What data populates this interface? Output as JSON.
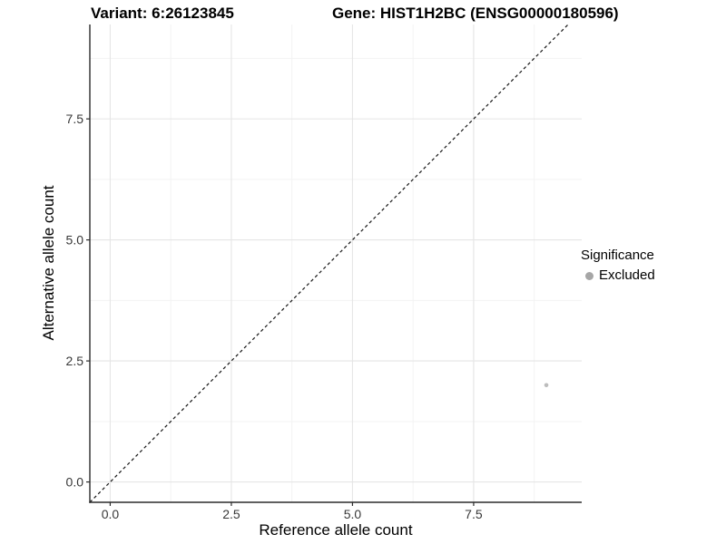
{
  "chart_data": {
    "type": "scatter",
    "titles": [
      "Variant: 6:26123845",
      "Gene: HIST1H2BC (ENSG00000180596)"
    ],
    "xlabel": "Reference allele count",
    "ylabel": "Alternative allele count",
    "x_ticks": [
      0,
      2.5,
      5,
      7.5
    ],
    "x_tick_labels": [
      "0.0",
      "2.5",
      "5.0",
      "7.5"
    ],
    "y_ticks": [
      0,
      2.5,
      5,
      7.5
    ],
    "y_tick_labels": [
      "0.0",
      "2.5",
      "5.0",
      "7.5"
    ],
    "xlim": [
      -0.42,
      9.73
    ],
    "ylim": [
      -0.42,
      9.45
    ],
    "grid": {
      "major": true,
      "minor": true
    },
    "points": [
      {
        "x": 9,
        "y": 2,
        "series": "Excluded",
        "color": "#bdbdbd"
      }
    ],
    "reference_line": {
      "type": "identity",
      "slope": 1,
      "intercept": 0,
      "style": "dashed",
      "color": "#141414"
    },
    "legend": {
      "title": "Significance",
      "position": "right",
      "items": [
        {
          "label": "Excluded",
          "color": "#a6a6a6"
        }
      ]
    },
    "colors": {
      "grid_major": "#e5e5e5",
      "grid_minor": "#f3f3f3",
      "axis_line": "#2b2b2b",
      "tick_text": "#383838",
      "background": "#ffffff"
    }
  }
}
